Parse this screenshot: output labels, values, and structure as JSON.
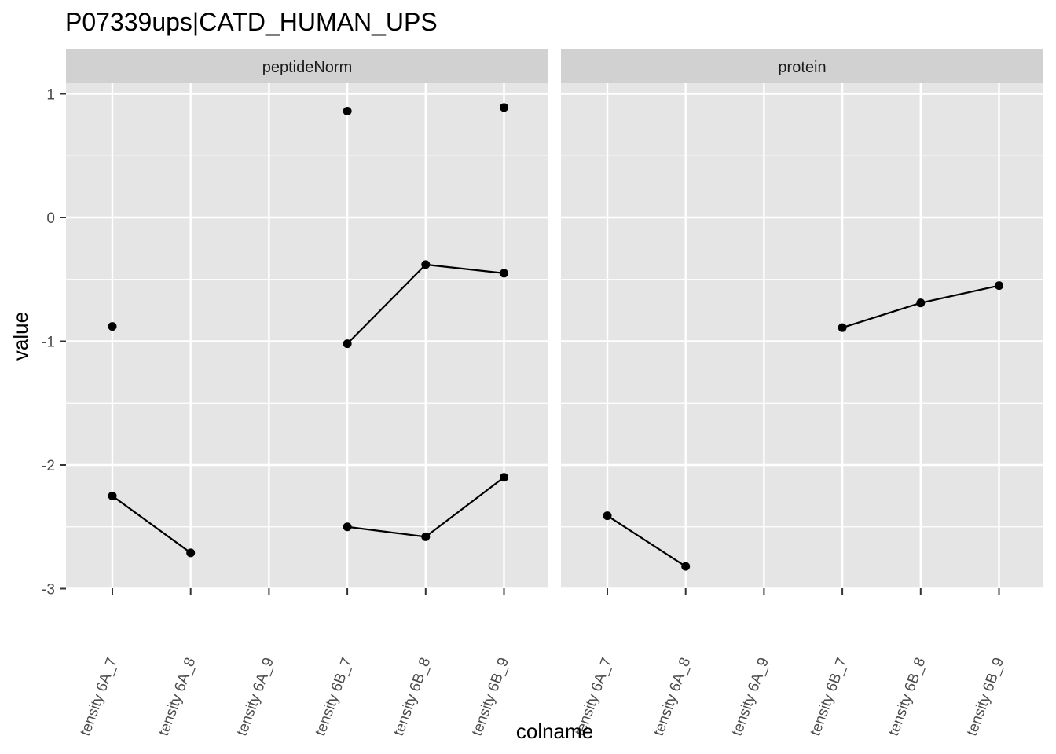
{
  "chart_data": {
    "type": "line",
    "title": "P07339ups|CATD_HUMAN_UPS",
    "xlabel": "colname",
    "ylabel": "value",
    "categories": [
      "tensity 6A_7",
      "tensity 6A_8",
      "tensity 6A_9",
      "tensity 6B_7",
      "tensity 6B_8",
      "tensity 6B_9"
    ],
    "y_ticks": [
      "1",
      "0",
      "-1",
      "-2",
      "-3"
    ],
    "ylim": [
      -3,
      1.1
    ],
    "grid": true,
    "facets": [
      {
        "label": "peptideNorm",
        "series": [
          {
            "values": [
              -0.88,
              null,
              null,
              0.86,
              null,
              0.89
            ]
          },
          {
            "values": [
              null,
              null,
              null,
              -1.02,
              -0.38,
              -0.45
            ]
          },
          {
            "values": [
              -2.25,
              -2.71,
              null,
              -2.5,
              -2.58,
              -2.1
            ]
          }
        ]
      },
      {
        "label": "protein",
        "series": [
          {
            "values": [
              null,
              null,
              null,
              -0.89,
              -0.69,
              -0.55
            ]
          },
          {
            "values": [
              -2.41,
              -2.82,
              null,
              null,
              null,
              null
            ]
          }
        ]
      }
    ],
    "colors": {
      "panel_bg": "#e5e5e5",
      "strip_bg": "#d1d1d1",
      "grid": "#ffffff",
      "mark": "#000000"
    }
  }
}
